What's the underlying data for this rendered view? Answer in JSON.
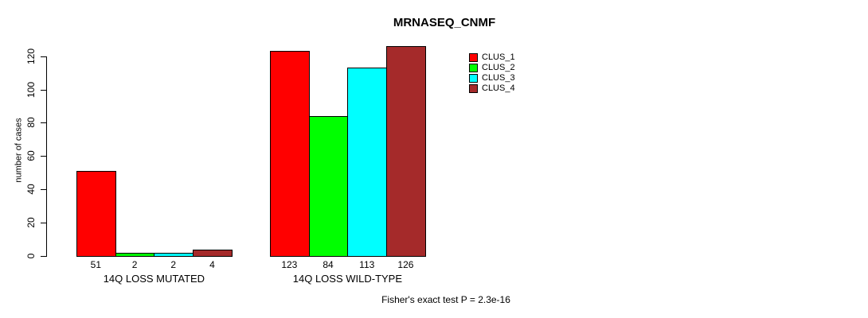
{
  "chart_data": {
    "type": "bar",
    "title": "MRNASEQ_CNMF",
    "xlabel": "",
    "ylabel": "number of cases",
    "categories": [
      "14Q LOSS MUTATED",
      "14Q LOSS WILD-TYPE"
    ],
    "series": [
      {
        "name": "CLUS_1",
        "color": "#ff0000",
        "values": [
          51,
          123
        ]
      },
      {
        "name": "CLUS_2",
        "color": "#00ff00",
        "values": [
          2,
          84
        ]
      },
      {
        "name": "CLUS_3",
        "color": "#00ffff",
        "values": [
          2,
          113
        ]
      },
      {
        "name": "CLUS_4",
        "color": "#a52a2a",
        "values": [
          4,
          126
        ]
      }
    ],
    "yticks": [
      0,
      20,
      40,
      60,
      80,
      100,
      120
    ],
    "ylim": [
      0,
      126
    ],
    "grid": false,
    "legend_position": "top-right",
    "legend_entries": [
      "CLUS_1",
      "CLUS_2",
      "CLUS_3",
      "CLUS_4"
    ],
    "annotation": "Fisher's exact test P = 2.3e-16",
    "bar_border_color": "#000000",
    "text_color": "#000000",
    "background_color": "#ffffff"
  }
}
